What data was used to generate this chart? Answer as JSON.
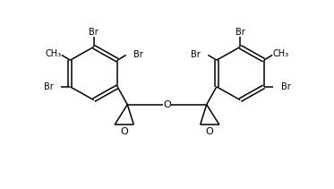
{
  "bg_color": "#ffffff",
  "line_color": "#000000",
  "text_color": "#000000",
  "font_size": 7.0,
  "figsize": [
    3.73,
    2.11
  ],
  "dpi": 100,
  "xlim": [
    0,
    10
  ],
  "ylim": [
    0,
    5.8
  ]
}
